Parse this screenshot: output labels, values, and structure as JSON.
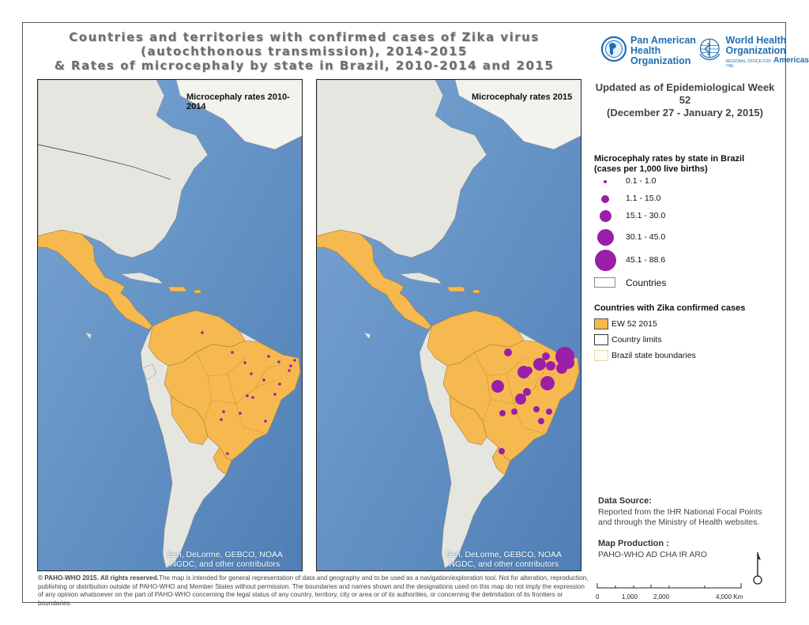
{
  "title": {
    "line1": "Countries and territories with confirmed cases of Zika virus",
    "line2": "(autochthonous transmission), 2014-2015",
    "line3": "& Rates of microcephaly by state in Brazil, 2010-2014 and 2015"
  },
  "logos": {
    "paho_line1": "Pan American",
    "paho_line2": "Health",
    "paho_line3": "Organization",
    "who_line1": "World Health",
    "who_line2": "Organization",
    "who_subline": "REGIONAL OFFICE FOR THE",
    "who_region": "Americas"
  },
  "updated": {
    "line1": "Updated as of Epidemiological Week 52",
    "line2": "(December 27 - January 2, 2015)"
  },
  "maps": {
    "left_title": "Microcephaly rates 2010-2014",
    "right_title": "Microcephaly rates 2015",
    "attribution_line1": "Esri, DeLorme, GEBCO, NOAA",
    "attribution_line2": "NGDC, and other contributors"
  },
  "legend": {
    "rates_heading1": "Microcephaly rates by state in Brazil",
    "rates_heading2": "(cases per 1,000 live births)",
    "rate_classes": [
      "0.1 - 1.0",
      "1.1 - 15.0",
      "15.1 - 30.0",
      "30.1 - 45.0",
      "45.1 - 88.6"
    ],
    "countries_label": "Countries",
    "zika_heading": "Countries with Zika confirmed cases",
    "ew_label": "EW 52 2015",
    "country_limits_label": "Country limits",
    "state_boundaries_label": "Brazil state boundaries"
  },
  "info": {
    "source_label": "Data Source:",
    "source_line1": "Reported from the IHR National Focal Points",
    "source_line2": "and through the Ministry of Health websites.",
    "production_label": "Map Production :",
    "production_text": "PAHO-WHO AD CHA IR ARO"
  },
  "scale": {
    "labels": [
      "0",
      "1,000",
      "2,000",
      "4,000 Km"
    ]
  },
  "footer": {
    "bold": "© PAHO-WHO 2015. All rights reserved.",
    "text": "The map is intended for general representation of data and geography and to be used as a navigation/exploration tool. Not for alteration, reproduction, publishing or distribution outside of PAHO-WHO and Member States without permission. The boundaries and names shown and the designations used on this map do not imply the expression of any opinion whatsoever on the part of PAHO-WHO concerning the legal status of any country, territory, city or area or of its authorities, or concerning the delimitation of its frontiers or boundaries."
  },
  "colors": {
    "zika_fill": "#f6b94f",
    "bubble": "#9a1ea8",
    "ocean": "#5d8fc2",
    "land": "#e6e6e0",
    "brand_blue": "#1f6fb5"
  }
}
